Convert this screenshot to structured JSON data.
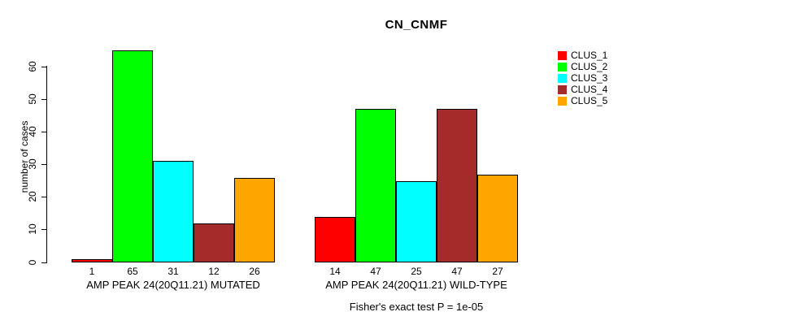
{
  "chart_data": {
    "type": "bar",
    "title": "CN_CNMF",
    "ylabel": "number of cases",
    "xlabel": "",
    "ylim": [
      0,
      65
    ],
    "yticks": [
      0,
      10,
      20,
      30,
      40,
      50,
      60
    ],
    "grid": false,
    "legend_position": "right",
    "series": [
      "CLUS_1",
      "CLUS_2",
      "CLUS_3",
      "CLUS_4",
      "CLUS_5"
    ],
    "series_colors": [
      "#FF0000",
      "#00FF00",
      "#00FFFF",
      "#A52A2A",
      "#FFA500"
    ],
    "groups": [
      {
        "label": "AMP PEAK 24(20Q11.21) MUTATED",
        "values": [
          1,
          65,
          31,
          12,
          26
        ]
      },
      {
        "label": "AMP PEAK 24(20Q11.21) WILD-TYPE",
        "values": [
          14,
          47,
          25,
          47,
          27
        ]
      }
    ],
    "bar_value_labels_shown": true,
    "annotation": "Fisher's exact test P = 1e-05",
    "text_color": "#000000",
    "background_color": "#FFFFFF"
  }
}
